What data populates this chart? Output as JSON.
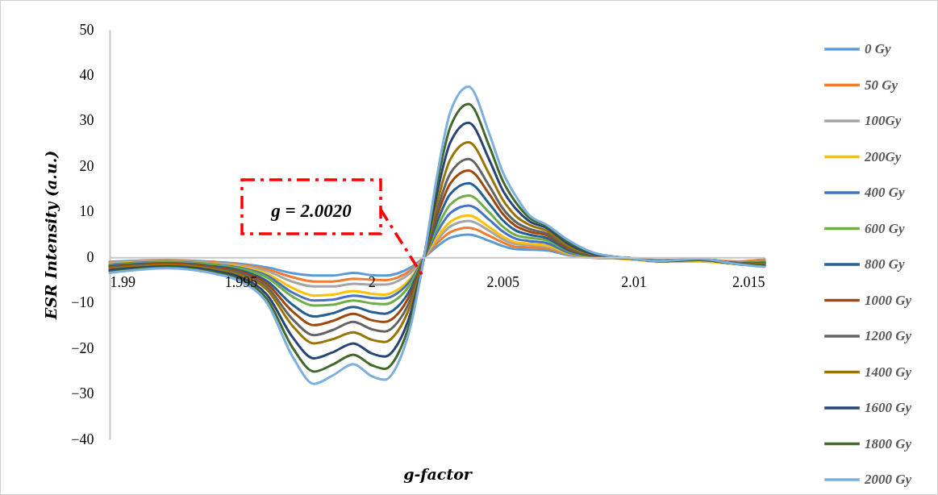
{
  "chart_data": {
    "type": "line",
    "xlabel": "g-factor",
    "ylabel": "ESR  Intensity  (a.u.)",
    "x": [
      1.99,
      1.9922,
      1.994,
      1.995,
      1.996,
      1.997,
      1.9978,
      1.9985,
      1.9993,
      2.0,
      2.0005,
      2.001,
      2.0015,
      2.002,
      2.0025,
      2.003,
      2.0037,
      2.0045,
      2.005,
      2.0055,
      2.006,
      2.0067,
      2.0075,
      2.0085,
      2.01,
      2.011,
      2.0125,
      2.014,
      2.015
    ],
    "series": [
      {
        "name": "0 Gy",
        "color": "#5b9bd5",
        "values": [
          -1.0,
          -0.6,
          -1.0,
          -1.4,
          -2.2,
          -3.5,
          -4.0,
          -4.0,
          -3.4,
          -3.9,
          -4.0,
          -3.5,
          -2.2,
          0,
          2.4,
          4.3,
          5.0,
          3.6,
          2.5,
          1.8,
          1.7,
          1.5,
          0.5,
          -0.1,
          -0.3,
          -0.8,
          -0.7,
          -1.2,
          -0.6
        ]
      },
      {
        "name": "50 Gy",
        "color": "#ed7d31",
        "values": [
          -1.1,
          -0.7,
          -1.1,
          -1.6,
          -2.6,
          -4.4,
          -5.3,
          -5.3,
          -4.7,
          -4.9,
          -5.0,
          -4.4,
          -2.8,
          0,
          3.1,
          5.5,
          6.5,
          4.7,
          3.3,
          2.3,
          2.2,
          1.9,
          0.7,
          -0.1,
          -0.2,
          -0.6,
          -0.5,
          -0.9,
          -0.4
        ]
      },
      {
        "name": "100Gy",
        "color": "#a5a5a5",
        "values": [
          -1.2,
          -0.8,
          -1.3,
          -1.8,
          -3.0,
          -5.4,
          -6.4,
          -6.4,
          -5.8,
          -6.0,
          -6.0,
          -5.2,
          -3.3,
          0,
          3.8,
          6.8,
          8.0,
          5.8,
          4.0,
          2.9,
          2.7,
          2.3,
          0.8,
          0.0,
          -0.3,
          -0.8,
          -0.7,
          -1.2,
          -0.8
        ]
      },
      {
        "name": "200Gy",
        "color": "#ffc000",
        "values": [
          -1.4,
          -0.9,
          -1.5,
          -2.1,
          -3.6,
          -6.8,
          -8.4,
          -8.2,
          -7.4,
          -8.0,
          -8.2,
          -7.1,
          -4.5,
          0,
          4.4,
          7.8,
          9.2,
          6.6,
          4.6,
          3.3,
          3.0,
          2.6,
          0.9,
          0.1,
          -0.5,
          -1.0,
          -0.9,
          -1.5,
          -1.6
        ]
      },
      {
        "name": "400 Gy",
        "color": "#4472c4",
        "values": [
          -1.6,
          -1.0,
          -1.6,
          -2.3,
          -4.0,
          -7.8,
          -9.5,
          -9.3,
          -8.4,
          -8.9,
          -9.0,
          -7.8,
          -5.0,
          0,
          5.5,
          9.7,
          11.4,
          8.2,
          5.7,
          4.1,
          3.6,
          3.1,
          1.1,
          0.2,
          -0.3,
          -0.8,
          -0.6,
          -1.3,
          -1.0
        ]
      },
      {
        "name": "600 Gy",
        "color": "#70ad47",
        "values": [
          -1.7,
          -1.1,
          -1.7,
          -2.5,
          -4.4,
          -8.7,
          -10.6,
          -10.4,
          -9.5,
          -10.1,
          -10.3,
          -9.0,
          -5.7,
          0,
          6.5,
          11.6,
          13.6,
          9.8,
          6.8,
          4.9,
          4.3,
          3.7,
          1.4,
          0.2,
          -0.3,
          -0.8,
          -0.6,
          -1.3,
          -1.0
        ]
      },
      {
        "name": "800 Gy",
        "color": "#255e91",
        "values": [
          -1.9,
          -1.3,
          -2.0,
          -2.9,
          -5.2,
          -10.5,
          -13.0,
          -12.3,
          -10.9,
          -12.0,
          -12.4,
          -10.8,
          -6.8,
          0,
          7.8,
          13.9,
          16.3,
          11.7,
          8.2,
          5.9,
          5.0,
          4.2,
          1.6,
          0.3,
          -0.3,
          -0.8,
          -0.5,
          -1.3,
          -1.2
        ]
      },
      {
        "name": "1000 Gy",
        "color": "#9e480e",
        "values": [
          -2.1,
          -1.4,
          -2.2,
          -3.2,
          -5.8,
          -12.0,
          -14.9,
          -14.0,
          -12.4,
          -13.8,
          -14.2,
          -12.4,
          -7.8,
          0,
          9.2,
          16.2,
          19.1,
          13.8,
          9.6,
          6.9,
          5.7,
          4.8,
          1.9,
          0.4,
          -0.3,
          -0.8,
          -0.5,
          -1.3,
          -1.3
        ]
      },
      {
        "name": "1200 Gy",
        "color": "#636363",
        "values": [
          -2.3,
          -1.6,
          -2.4,
          -3.5,
          -6.5,
          -13.7,
          -17.1,
          -16.0,
          -14.2,
          -15.8,
          -16.3,
          -14.2,
          -9.0,
          0,
          10.4,
          18.4,
          21.6,
          15.6,
          10.8,
          7.8,
          6.3,
          5.2,
          2.2,
          0.5,
          -0.3,
          -0.8,
          -0.5,
          -1.4,
          -1.4
        ]
      },
      {
        "name": "1400 Gy",
        "color": "#997300",
        "values": [
          -2.5,
          -1.7,
          -2.6,
          -3.9,
          -7.1,
          -15.2,
          -18.9,
          -18.0,
          -16.5,
          -18.1,
          -18.6,
          -16.2,
          -10.2,
          0,
          12.1,
          21.5,
          25.3,
          18.2,
          12.7,
          9.1,
          7.2,
          5.8,
          2.5,
          0.6,
          -0.3,
          -0.8,
          -0.4,
          -1.4,
          -1.5
        ]
      },
      {
        "name": "1600 Gy",
        "color": "#264478",
        "values": [
          -2.8,
          -2.0,
          -3.0,
          -4.4,
          -8.2,
          -17.7,
          -22.2,
          -20.9,
          -18.9,
          -21.1,
          -21.8,
          -19.0,
          -12.0,
          0,
          14.2,
          25.2,
          29.6,
          21.3,
          14.8,
          10.7,
          8.0,
          6.4,
          3.0,
          0.7,
          -0.3,
          -0.8,
          -0.4,
          -1.4,
          -1.8
        ]
      },
      {
        "name": "1800 Gy",
        "color": "#43682b",
        "values": [
          -3.1,
          -2.2,
          -3.3,
          -4.9,
          -9.1,
          -20.0,
          -25.1,
          -23.6,
          -21.4,
          -23.7,
          -24.5,
          -21.3,
          -13.5,
          0,
          16.2,
          28.6,
          33.7,
          24.3,
          16.9,
          12.1,
          8.8,
          6.8,
          3.4,
          0.9,
          -0.3,
          -0.8,
          -0.3,
          -1.5,
          -1.9
        ]
      },
      {
        "name": "2000 Gy",
        "color": "#7cafdd",
        "values": [
          -3.4,
          -2.4,
          -3.6,
          -5.3,
          -10.0,
          -22.0,
          -27.8,
          -26.0,
          -23.5,
          -26.1,
          -26.9,
          -23.4,
          -14.8,
          0,
          18.0,
          31.9,
          37.5,
          27.0,
          18.8,
          13.5,
          9.4,
          7.1,
          3.8,
          1.0,
          -0.3,
          -0.8,
          -0.3,
          -1.5,
          -2.1
        ]
      }
    ],
    "xlim": [
      1.99,
      2.015
    ],
    "xticks": [
      1.99,
      1.995,
      2,
      2.005,
      2.01,
      2.015
    ],
    "ylim": [
      -40,
      50
    ],
    "yticks": [
      -40,
      -30,
      -20,
      -10,
      0,
      10,
      20,
      30,
      40,
      50
    ],
    "legend": "right",
    "line_style": "solid",
    "annotations": [
      "g = 2.0020"
    ]
  }
}
